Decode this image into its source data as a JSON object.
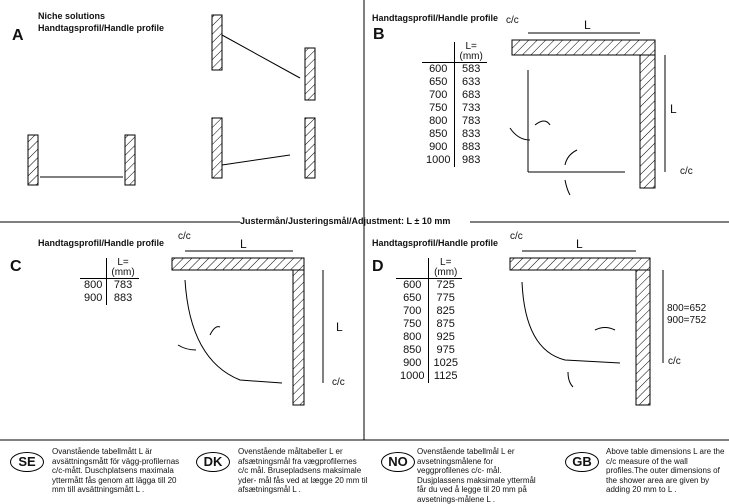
{
  "adjustment": "Justermån/Justeringsmål/Adjustment: L ± 10 mm",
  "panels": {
    "A": {
      "letter": "A",
      "title1": "Niche solutions",
      "title2": "Handtagsprofil/Handle profile"
    },
    "B": {
      "letter": "B",
      "title": "Handtagsprofil/Handle profile",
      "cc1": "c/c",
      "cc2": "c/c",
      "L1": "L",
      "L2": "L",
      "header": [
        "",
        "L=\n(mm)"
      ],
      "rows": [
        [
          "600",
          "583"
        ],
        [
          "650",
          "633"
        ],
        [
          "700",
          "683"
        ],
        [
          "750",
          "733"
        ],
        [
          "800",
          "783"
        ],
        [
          "850",
          "833"
        ],
        [
          "900",
          "883"
        ],
        [
          "1000",
          "983"
        ]
      ]
    },
    "C": {
      "letter": "C",
      "title": "Handtagsprofil/Handle profile",
      "cc1": "c/c",
      "cc2": "c/c",
      "L1": "L",
      "L2": "L",
      "rows": [
        [
          "800",
          "783"
        ],
        [
          "900",
          "883"
        ]
      ]
    },
    "D": {
      "letter": "D",
      "title": "Handtagsprofil/Handle profile",
      "cc1": "c/c",
      "cc2": "c/c",
      "L1": "L",
      "side1": "800=652",
      "side2": "900=752",
      "rows": [
        [
          "600",
          "725"
        ],
        [
          "650",
          "775"
        ],
        [
          "700",
          "825"
        ],
        [
          "750",
          "875"
        ],
        [
          "800",
          "925"
        ],
        [
          "850",
          "975"
        ],
        [
          "900",
          "1025"
        ],
        [
          "1000",
          "1125"
        ]
      ]
    }
  },
  "table_header": {
    "l1": "L=",
    "l2": "(mm)"
  },
  "notes": [
    {
      "code": "SE",
      "text": "Ovanstående tabellmått L är avsättningsmått för vägg-profilernas c/c-mått. Duschplatsens maximala yttermått fås genom att lägga till 20 mm till avsättningsmått L ."
    },
    {
      "code": "DK",
      "text": "Ovenstående måltabeller L er afsætningsmål fra vægprofilernes c/c mål. Brusepladsens maksimale yder- mål fås ved at lægge 20 mm til afsætningsmål L ."
    },
    {
      "code": "NO",
      "text": "Ovenstående tabellmål L er avsetningsmålene for veggprofilenes c/c- mål. Dusjplassens maksimale yttermål får du ved å legge til 20 mm på avsetnings-målene L ."
    },
    {
      "code": "GB",
      "text": "Above table dimensions L are the c/c measure of the wall profiles.The outer dimensions of the shower area are given by adding 20 mm to L ."
    }
  ]
}
